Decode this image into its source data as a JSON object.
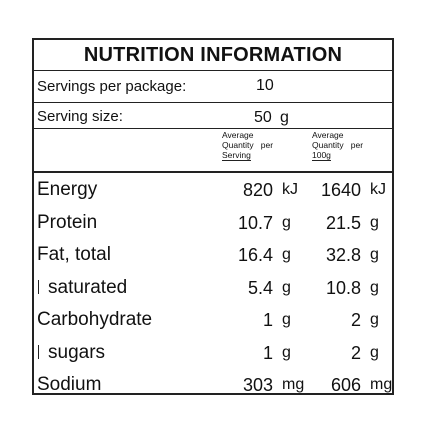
{
  "title": "NUTRITION INFORMATION",
  "servings_per_package": {
    "label": "Servings per package:",
    "value": "10"
  },
  "serving_size": {
    "label": "Serving size:",
    "value": "50",
    "unit": "g"
  },
  "columns": {
    "per_serving": [
      "Average",
      "Quantity   per",
      "Serving"
    ],
    "per_100g": [
      "Average",
      "Quantity   per",
      "100g"
    ]
  },
  "nutrients": [
    {
      "label": "Energy",
      "serving": "820",
      "serving_unit": "kJ",
      "per100": "1640",
      "per100_unit": "kJ",
      "sub": false
    },
    {
      "label": "Protein",
      "serving": "10.7",
      "serving_unit": "g",
      "per100": "21.5",
      "per100_unit": "g",
      "sub": false
    },
    {
      "label": "Fat, total",
      "serving": "16.4",
      "serving_unit": "g",
      "per100": "32.8",
      "per100_unit": "g",
      "sub": false
    },
    {
      "label": "saturated",
      "serving": "5.4",
      "serving_unit": "g",
      "per100": "10.8",
      "per100_unit": "g",
      "sub": true
    },
    {
      "label": "Carbohydrate",
      "serving": "1",
      "serving_unit": "g",
      "per100": "2",
      "per100_unit": "g",
      "sub": false
    },
    {
      "label": "sugars",
      "serving": "1",
      "serving_unit": "g",
      "per100": "2",
      "per100_unit": "g",
      "sub": true
    },
    {
      "label": "Sodium",
      "serving": "303",
      "serving_unit": "mg",
      "per100": "606",
      "per100_unit": "mg",
      "sub": false
    }
  ]
}
